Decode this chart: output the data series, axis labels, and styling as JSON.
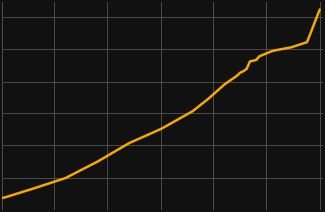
{
  "background_color": "#111111",
  "grid_color": "#555555",
  "line_color": "#F5A800",
  "line_width": 1.8,
  "years": [
    1900,
    1901,
    1910,
    1920,
    1930,
    1940,
    1950,
    1960,
    1965,
    1970,
    1974,
    1975,
    1976,
    1977,
    1978,
    1979,
    1980,
    1981,
    1985,
    1986,
    1991,
    1996,
    2000
  ],
  "population": [
    18.6,
    18.7,
    19.9,
    21.3,
    23.5,
    26.0,
    27.9,
    30.3,
    32.0,
    33.9,
    35.1,
    35.5,
    35.7,
    36.0,
    37.0,
    37.1,
    37.2,
    37.7,
    38.4,
    38.5,
    38.9,
    39.6,
    44.0
  ],
  "xlim": [
    1900,
    2001
  ],
  "ylim": [
    17,
    45
  ],
  "grid_x_positions": [
    1900,
    1916.5,
    1933,
    1950,
    1966.5,
    1983,
    2000
  ],
  "grid_y_positions": [
    17,
    21.3,
    25.7,
    30,
    34.3,
    38.7,
    43
  ]
}
